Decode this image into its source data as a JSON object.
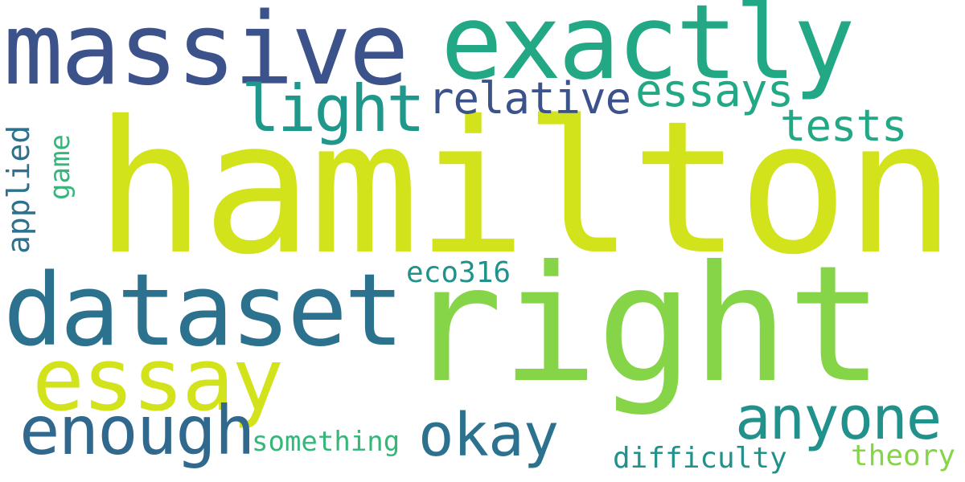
{
  "words": [
    {
      "key": "hamilton",
      "text": "hamilton",
      "color": "#d2e21b",
      "orientation": "horizontal"
    },
    {
      "key": "right",
      "text": "right",
      "color": "#86d549",
      "orientation": "horizontal"
    },
    {
      "key": "massive",
      "text": "massive",
      "color": "#3b528b",
      "orientation": "horizontal"
    },
    {
      "key": "exactly",
      "text": "exactly",
      "color": "#22a884",
      "orientation": "horizontal"
    },
    {
      "key": "dataset",
      "text": "dataset",
      "color": "#2c728e",
      "orientation": "horizontal"
    },
    {
      "key": "essay",
      "text": "essay",
      "color": "#d2e21b",
      "orientation": "horizontal"
    },
    {
      "key": "light",
      "text": "light",
      "color": "#1f988b",
      "orientation": "horizontal"
    },
    {
      "key": "relative",
      "text": "relative",
      "color": "#3b528b",
      "orientation": "horizontal"
    },
    {
      "key": "essays",
      "text": "essays",
      "color": "#22a884",
      "orientation": "horizontal"
    },
    {
      "key": "tests",
      "text": "tests",
      "color": "#22a884",
      "orientation": "horizontal"
    },
    {
      "key": "enough",
      "text": "enough",
      "color": "#31688e",
      "orientation": "horizontal"
    },
    {
      "key": "okay",
      "text": "okay",
      "color": "#2c728e",
      "orientation": "horizontal"
    },
    {
      "key": "anyone",
      "text": "anyone",
      "color": "#21918c",
      "orientation": "horizontal"
    },
    {
      "key": "eco316",
      "text": "eco316",
      "color": "#21918c",
      "orientation": "horizontal"
    },
    {
      "key": "something",
      "text": "something",
      "color": "#35b779",
      "orientation": "horizontal"
    },
    {
      "key": "difficulty",
      "text": "difficulty",
      "color": "#21918c",
      "orientation": "horizontal"
    },
    {
      "key": "theory",
      "text": "theory",
      "color": "#86d549",
      "orientation": "horizontal"
    },
    {
      "key": "applied",
      "text": "applied",
      "color": "#2c728e",
      "orientation": "vertical"
    },
    {
      "key": "game",
      "text": "game",
      "color": "#35b779",
      "orientation": "vertical"
    }
  ]
}
